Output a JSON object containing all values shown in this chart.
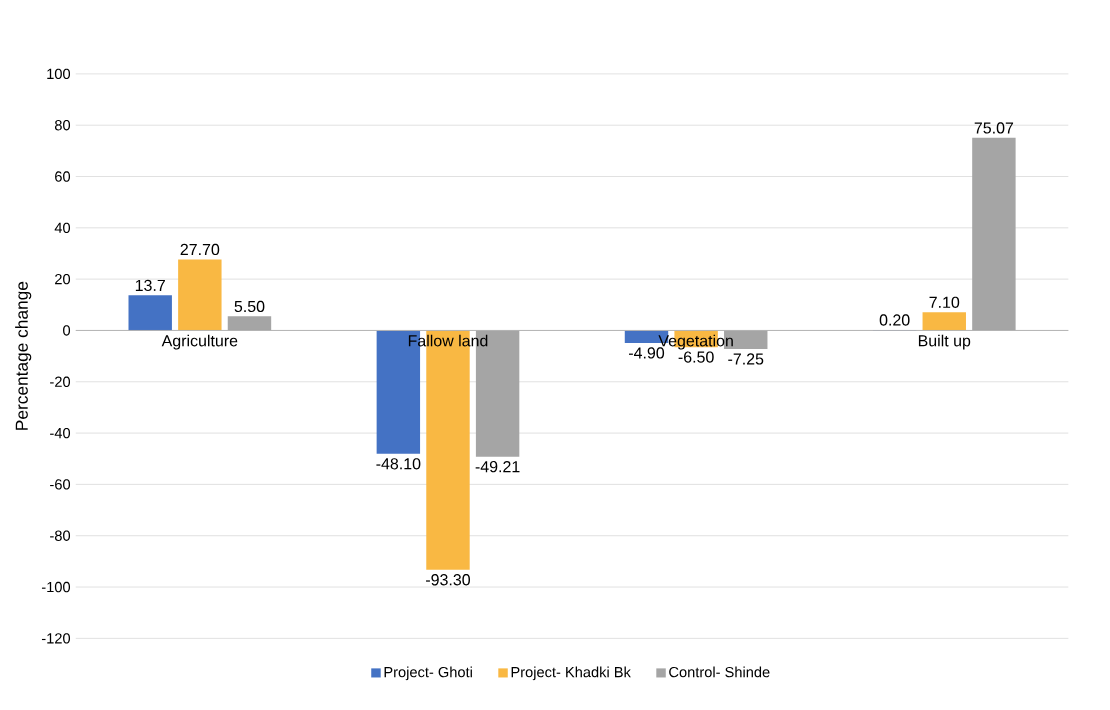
{
  "chart_data": {
    "type": "bar",
    "ylabel": "Percentage change",
    "categories": [
      "Agriculture",
      "Fallow land",
      "Vegetation",
      "Built up"
    ],
    "series": [
      {
        "name": "Project- Ghoti",
        "color": "#4472c4",
        "values": [
          13.7,
          -48.1,
          -4.9,
          0.2
        ],
        "value_labels": [
          "13.7",
          "-48.10",
          "-4.90",
          "0.20"
        ]
      },
      {
        "name": "Project- Khadki Bk",
        "color": "#f9b843",
        "values": [
          27.7,
          -93.3,
          -6.5,
          7.1
        ],
        "value_labels": [
          "27.70",
          "-93.30",
          "-6.50",
          "7.10"
        ]
      },
      {
        "name": "Control- Shinde",
        "color": "#a5a5a5",
        "values": [
          5.5,
          -49.21,
          -7.25,
          75.07
        ],
        "value_labels": [
          "5.50",
          "-49.21",
          "-7.25",
          "75.07"
        ]
      }
    ],
    "ylim": [
      -120,
      100
    ],
    "yticks": [
      -120,
      -100,
      -80,
      -60,
      -40,
      -20,
      0,
      20,
      40,
      60,
      80,
      100
    ],
    "grid": "y",
    "legend": "bottom"
  }
}
